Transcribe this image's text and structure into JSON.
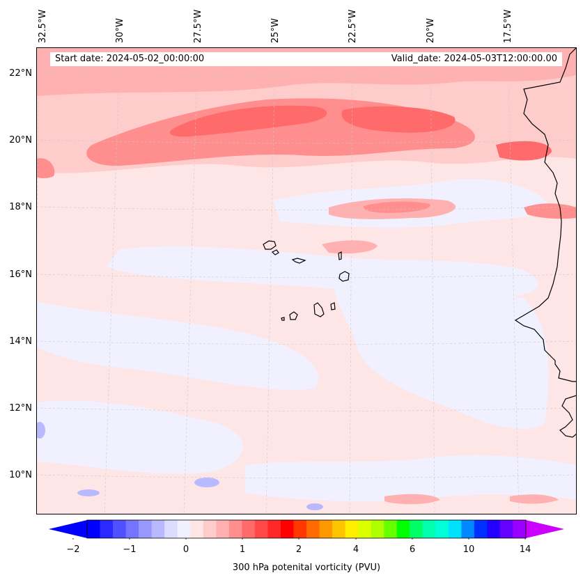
{
  "map": {
    "longitude_labels": [
      "32.5°W",
      "30°W",
      "27.5°W",
      "25°W",
      "22.5°W",
      "20°W",
      "17.5°W"
    ],
    "latitude_labels": [
      "22°N",
      "20°N",
      "18°N",
      "16°N",
      "14°N",
      "12°N",
      "10°N"
    ],
    "start_date": "Start date: 2024-05-02_00:00:00",
    "valid_date": "Valid_date: 2024-05-03T12:00:00.00"
  },
  "colorbar": {
    "label": "300 hPa potenital vorticity (PVU)",
    "tick_labels": [
      "−2",
      "−1",
      "0",
      "1",
      "2",
      "4",
      "6",
      "10",
      "14"
    ],
    "colors": [
      "#0000ff",
      "#2a2aff",
      "#5050ff",
      "#7474ff",
      "#9898ff",
      "#b9b9ff",
      "#dcdcff",
      "#f0f0ff",
      "#ffe6e6",
      "#ffcccc",
      "#ffb0b0",
      "#ff8f8f",
      "#ff6a6a",
      "#ff4848",
      "#ff2828",
      "#ff0000",
      "#ff3800",
      "#ff6a00",
      "#ff9900",
      "#ffc400",
      "#ffee00",
      "#dcff00",
      "#b0ff00",
      "#66ff00",
      "#00ff00",
      "#00ff66",
      "#00ffb0",
      "#00ffd8",
      "#00e0ff",
      "#0088ff",
      "#0030ff",
      "#2400ff",
      "#6600ff",
      "#9900ff"
    ],
    "under_color": "#0000ff",
    "over_color": "#cc00ff"
  }
}
